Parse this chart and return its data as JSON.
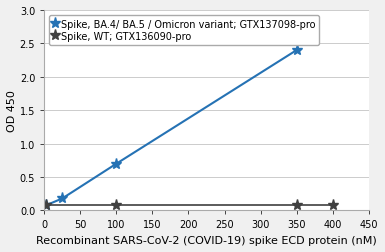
{
  "series1_label": "Spike, BA.4/ BA.5 / Omicron variant; GTX137098-pro",
  "series2_label": "Spike, WT; GTX136090-pro",
  "series1_x": [
    3,
    25,
    100,
    350
  ],
  "series1_y": [
    0.08,
    0.18,
    0.7,
    2.4
  ],
  "series2_x": [
    3,
    100,
    350,
    400
  ],
  "series2_y": [
    0.08,
    0.08,
    0.08,
    0.08
  ],
  "series1_color": "#2572b4",
  "series2_color": "#404040",
  "xlabel": "Recombinant SARS-CoV-2 (COVID-19) spike ECD protein (nM)",
  "ylabel": "OD 450",
  "xlim": [
    0,
    450
  ],
  "ylim": [
    0,
    3
  ],
  "xticks": [
    0,
    50,
    100,
    150,
    200,
    250,
    300,
    350,
    400,
    450
  ],
  "yticks": [
    0,
    0.5,
    1,
    1.5,
    2,
    2.5,
    3
  ],
  "bg_color": "#f0f0f0",
  "plot_bg": "#ffffff",
  "legend_marker1": "*",
  "legend_marker2": "*",
  "title_fontsize": 8,
  "axis_fontsize": 8,
  "legend_fontsize": 7
}
